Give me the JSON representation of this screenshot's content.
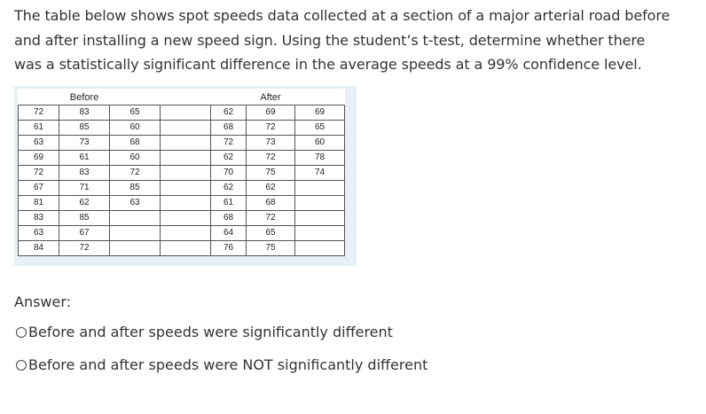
{
  "question": {
    "lines": [
      "The table below shows spot speeds data collected at a section of a major arterial road before",
      "and after installing a new speed sign. Using the student’s t-test, determine whether there",
      "was a statistically significant difference in the average speeds at a 99% confidence level."
    ]
  },
  "table": {
    "before_header": "Before",
    "after_header": "After",
    "rows": [
      [
        "72",
        "83",
        "65",
        "",
        "62",
        "69",
        "69"
      ],
      [
        "61",
        "85",
        "60",
        "",
        "68",
        "72",
        "65"
      ],
      [
        "63",
        "73",
        "68",
        "",
        "72",
        "73",
        "60"
      ],
      [
        "69",
        "61",
        "60",
        "",
        "62",
        "72",
        "78"
      ],
      [
        "72",
        "83",
        "72",
        "",
        "70",
        "75",
        "74"
      ],
      [
        "67",
        "71",
        "85",
        "",
        "62",
        "62",
        ""
      ],
      [
        "81",
        "62",
        "63",
        "",
        "61",
        "68",
        ""
      ],
      [
        "83",
        "85",
        "",
        "",
        "68",
        "72",
        ""
      ],
      [
        "63",
        "67",
        "",
        "",
        "64",
        "65",
        ""
      ],
      [
        "84",
        "72",
        "",
        "",
        "76",
        "75",
        ""
      ]
    ]
  },
  "answer": {
    "label": "Answer:",
    "options": [
      "Before and after speeds were significantly different",
      "Before and after speeds were NOT significantly different"
    ]
  }
}
